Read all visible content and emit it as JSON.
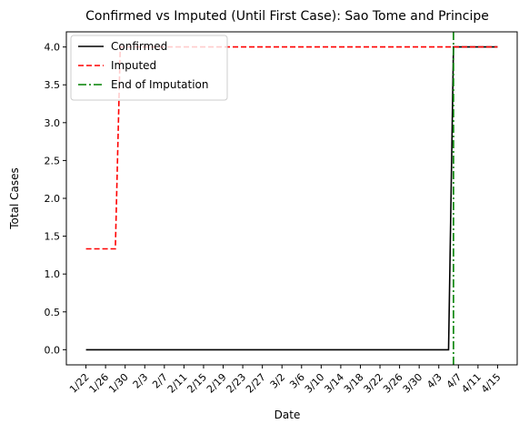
{
  "chart_data": {
    "type": "line",
    "title": "Confirmed vs Imputed (Until First Case): Sao Tome and Principe",
    "xlabel": "Date",
    "ylabel": "Total Cases",
    "x_ticks": [
      "1/22",
      "1/26",
      "1/30",
      "2/3",
      "2/7",
      "2/11",
      "2/15",
      "2/19",
      "2/23",
      "2/27",
      "3/2",
      "3/6",
      "3/10",
      "3/14",
      "3/18",
      "3/22",
      "3/26",
      "3/30",
      "4/3",
      "4/7",
      "4/11",
      "4/15"
    ],
    "y_ticks": [
      "0.0",
      "0.5",
      "1.0",
      "1.5",
      "2.0",
      "2.5",
      "3.0",
      "3.5",
      "4.0"
    ],
    "xlim": [
      "1/18",
      "4/19"
    ],
    "ylim": [
      -0.2,
      4.2
    ],
    "grid": false,
    "legend_position": "top-left",
    "series": [
      {
        "name": "Confirmed",
        "color": "#000000",
        "style": "solid",
        "points": [
          [
            "1/22",
            0
          ],
          [
            "4/5",
            0
          ],
          [
            "4/6",
            4
          ],
          [
            "4/15",
            4
          ]
        ]
      },
      {
        "name": "Imputed",
        "color": "#ff0000",
        "style": "dashed",
        "points": [
          [
            "1/22",
            1.333
          ],
          [
            "1/28",
            1.333
          ],
          [
            "1/29",
            4
          ],
          [
            "4/15",
            4
          ]
        ]
      }
    ],
    "vlines": [
      {
        "name": "End of Imputation",
        "color": "#008000",
        "style": "dashdot",
        "x": "4/6"
      }
    ]
  }
}
